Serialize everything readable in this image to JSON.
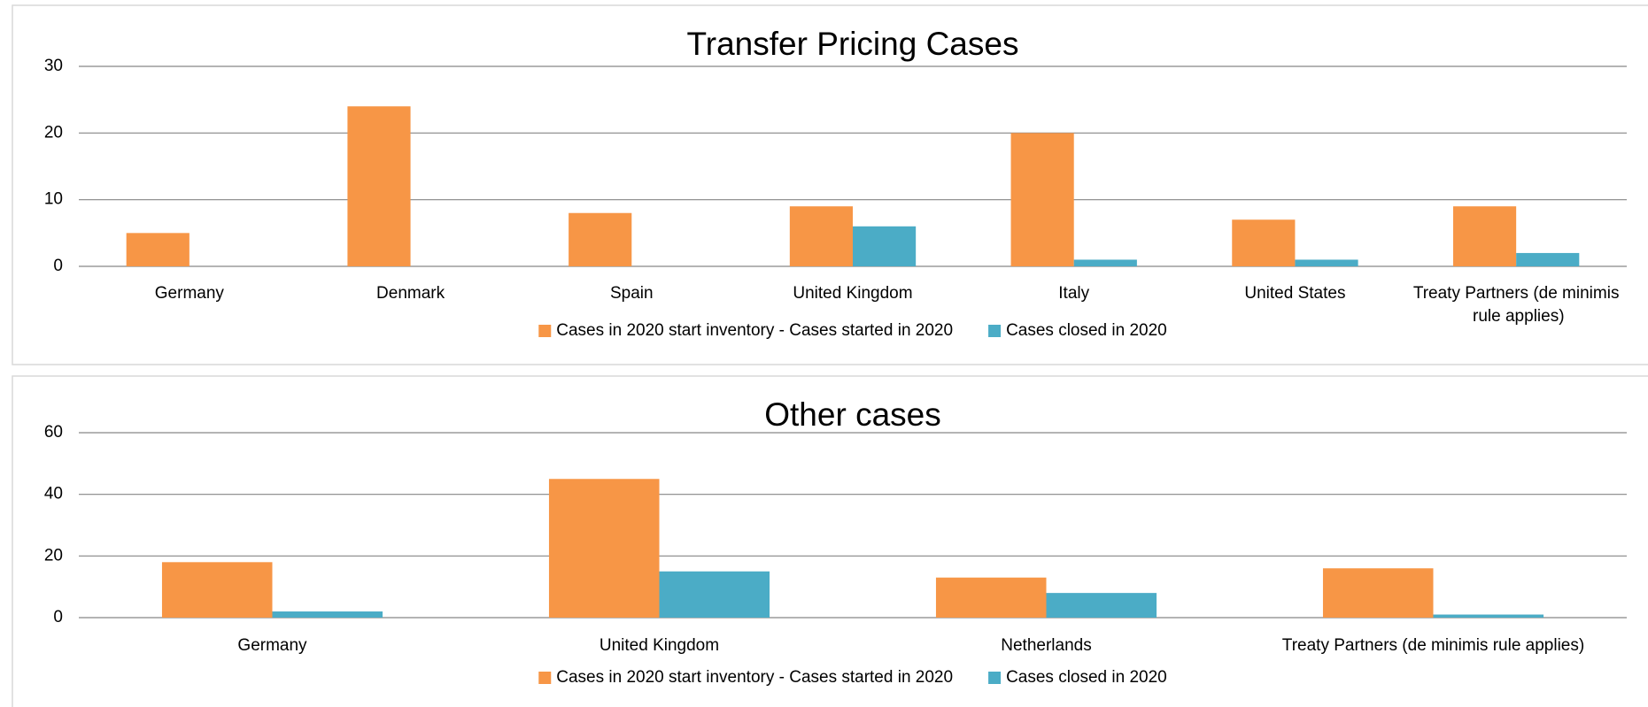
{
  "chart_data": [
    {
      "type": "bar",
      "title": "Transfer Pricing Cases",
      "categories": [
        "Germany",
        "Denmark",
        "Spain",
        "United Kingdom",
        "Italy",
        "United States",
        "Treaty Partners (de minimis rule applies)"
      ],
      "series": [
        {
          "name": "Cases in 2020 start inventory - Cases started in 2020",
          "color": "#f79646",
          "values": [
            5,
            24,
            8,
            9,
            20,
            7,
            9
          ]
        },
        {
          "name": "Cases closed in 2020",
          "color": "#4bacc6",
          "values": [
            0,
            0,
            0,
            6,
            1,
            1,
            2
          ]
        }
      ],
      "ylim": [
        0,
        30
      ],
      "yticks": [
        0,
        10,
        20,
        30
      ],
      "grid": true,
      "legend": "bottom"
    },
    {
      "type": "bar",
      "title": "Other cases",
      "categories": [
        "Germany",
        "United Kingdom",
        "Netherlands",
        "Treaty Partners (de minimis rule applies)"
      ],
      "series": [
        {
          "name": "Cases in 2020 start inventory - Cases started in 2020",
          "color": "#f79646",
          "values": [
            18,
            45,
            13,
            16
          ]
        },
        {
          "name": "Cases closed in 2020",
          "color": "#4bacc6",
          "values": [
            2,
            15,
            8,
            1
          ]
        }
      ],
      "ylim": [
        0,
        60
      ],
      "yticks": [
        0,
        20,
        40,
        60
      ],
      "grid": true,
      "legend": "bottom"
    }
  ]
}
